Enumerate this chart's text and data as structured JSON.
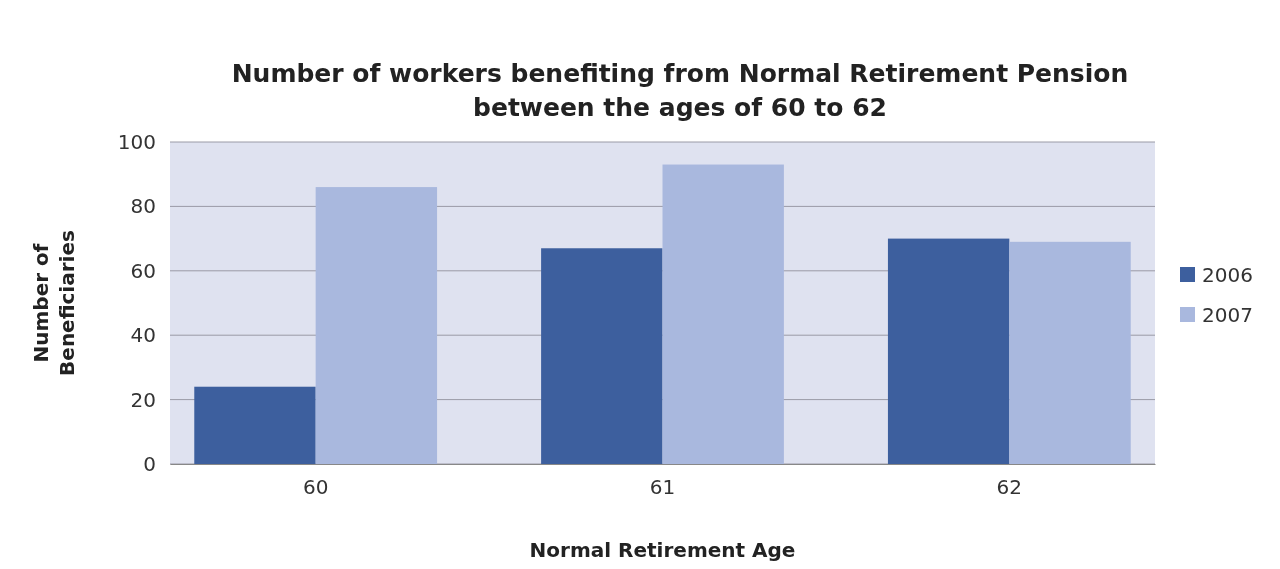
{
  "chart_data": {
    "type": "bar",
    "title": "Number of workers benefiting from Normal Retirement Pension between the ages of 60 to 62",
    "xlabel": "Normal Retirement Age",
    "ylabel": "Number of Beneficiaries",
    "categories": [
      "60",
      "61",
      "62"
    ],
    "series": [
      {
        "name": "2006",
        "color": "#3d5f9e",
        "values": [
          24,
          67,
          70
        ]
      },
      {
        "name": "2007",
        "color": "#a9b8de",
        "values": [
          86,
          93,
          69
        ]
      }
    ],
    "ylim": [
      0,
      100
    ],
    "yticks": [
      0,
      20,
      40,
      60,
      80,
      100
    ],
    "grid": "y",
    "legend": "right"
  }
}
